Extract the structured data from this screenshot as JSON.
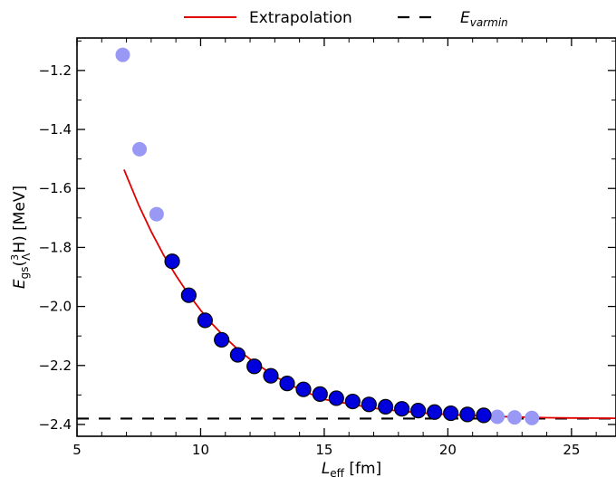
{
  "chart_data": {
    "type": "scatter",
    "title": "",
    "xlabel_main": "L",
    "xlabel_sub": "eff",
    "xlabel_unit": " [fm]",
    "ylabel_main": "E",
    "ylabel_sub": "gs",
    "ylabel_open": "(",
    "ylabel_sup": "3",
    "ylabel_lambda_sub": "Λ",
    "ylabel_rest": "H) [MeV]",
    "xlim": [
      5,
      26.8
    ],
    "ylim": [
      -2.44,
      -1.09
    ],
    "xticks": [
      5,
      10,
      15,
      20,
      25
    ],
    "yticks": [
      -1.2,
      -1.4,
      -1.6,
      -1.8,
      -2.0,
      -2.2,
      -2.4
    ],
    "ytick_labels": [
      "−1.2",
      "−1.4",
      "−1.6",
      "−1.8",
      "−2.0",
      "−2.2",
      "−2.4"
    ],
    "legend_position": "top-center, outside plot",
    "legend": [
      {
        "label": "Extrapolation",
        "style": "solid",
        "color": "#e00000"
      },
      {
        "label_main": "E",
        "label_sub": "varmin",
        "style": "dashed",
        "color": "#000000"
      }
    ],
    "series": [
      {
        "style": "scatter",
        "color": "#9999f5",
        "points": [
          {
            "x": 6.85,
            "y": -1.147
          },
          {
            "x": 7.53,
            "y": -1.467
          },
          {
            "x": 8.22,
            "y": -1.687
          },
          {
            "x": 22.0,
            "y": -2.374
          },
          {
            "x": 22.7,
            "y": -2.376
          },
          {
            "x": 23.4,
            "y": -2.378
          }
        ]
      },
      {
        "style": "scatter",
        "color": "#0000dd",
        "edgecolor": "#000000",
        "points": [
          {
            "x": 8.85,
            "y": -1.847
          },
          {
            "x": 9.52,
            "y": -1.962
          },
          {
            "x": 10.18,
            "y": -2.047
          },
          {
            "x": 10.85,
            "y": -2.113
          },
          {
            "x": 11.5,
            "y": -2.164
          },
          {
            "x": 12.17,
            "y": -2.203
          },
          {
            "x": 12.84,
            "y": -2.235
          },
          {
            "x": 13.5,
            "y": -2.261
          },
          {
            "x": 14.16,
            "y": -2.281
          },
          {
            "x": 14.83,
            "y": -2.297
          },
          {
            "x": 15.49,
            "y": -2.311
          },
          {
            "x": 16.15,
            "y": -2.322
          },
          {
            "x": 16.81,
            "y": -2.332
          },
          {
            "x": 17.48,
            "y": -2.34
          },
          {
            "x": 18.14,
            "y": -2.347
          },
          {
            "x": 18.8,
            "y": -2.353
          },
          {
            "x": 19.46,
            "y": -2.358
          },
          {
            "x": 20.12,
            "y": -2.362
          },
          {
            "x": 20.79,
            "y": -2.366
          },
          {
            "x": 21.45,
            "y": -2.369
          }
        ]
      }
    ],
    "extrapolation": {
      "x": [
        6.9,
        7.5,
        8.0,
        8.5,
        9.0,
        9.5,
        10.0,
        10.5,
        11.0,
        11.5,
        12.0,
        13.0,
        14.0,
        15.0,
        16.0,
        17.0,
        18.0,
        19.0,
        20.0,
        21.0,
        22.0,
        23.0,
        24.0,
        25.0,
        26.8
      ],
      "y": [
        -1.536,
        -1.657,
        -1.746,
        -1.825,
        -1.895,
        -1.957,
        -2.013,
        -2.062,
        -2.106,
        -2.145,
        -2.179,
        -2.237,
        -2.281,
        -2.315,
        -2.33,
        -2.345,
        -2.354,
        -2.361,
        -2.366,
        -2.37,
        -2.373,
        -2.375,
        -2.377,
        -2.378,
        -2.379
      ]
    },
    "varmin": -2.38
  }
}
